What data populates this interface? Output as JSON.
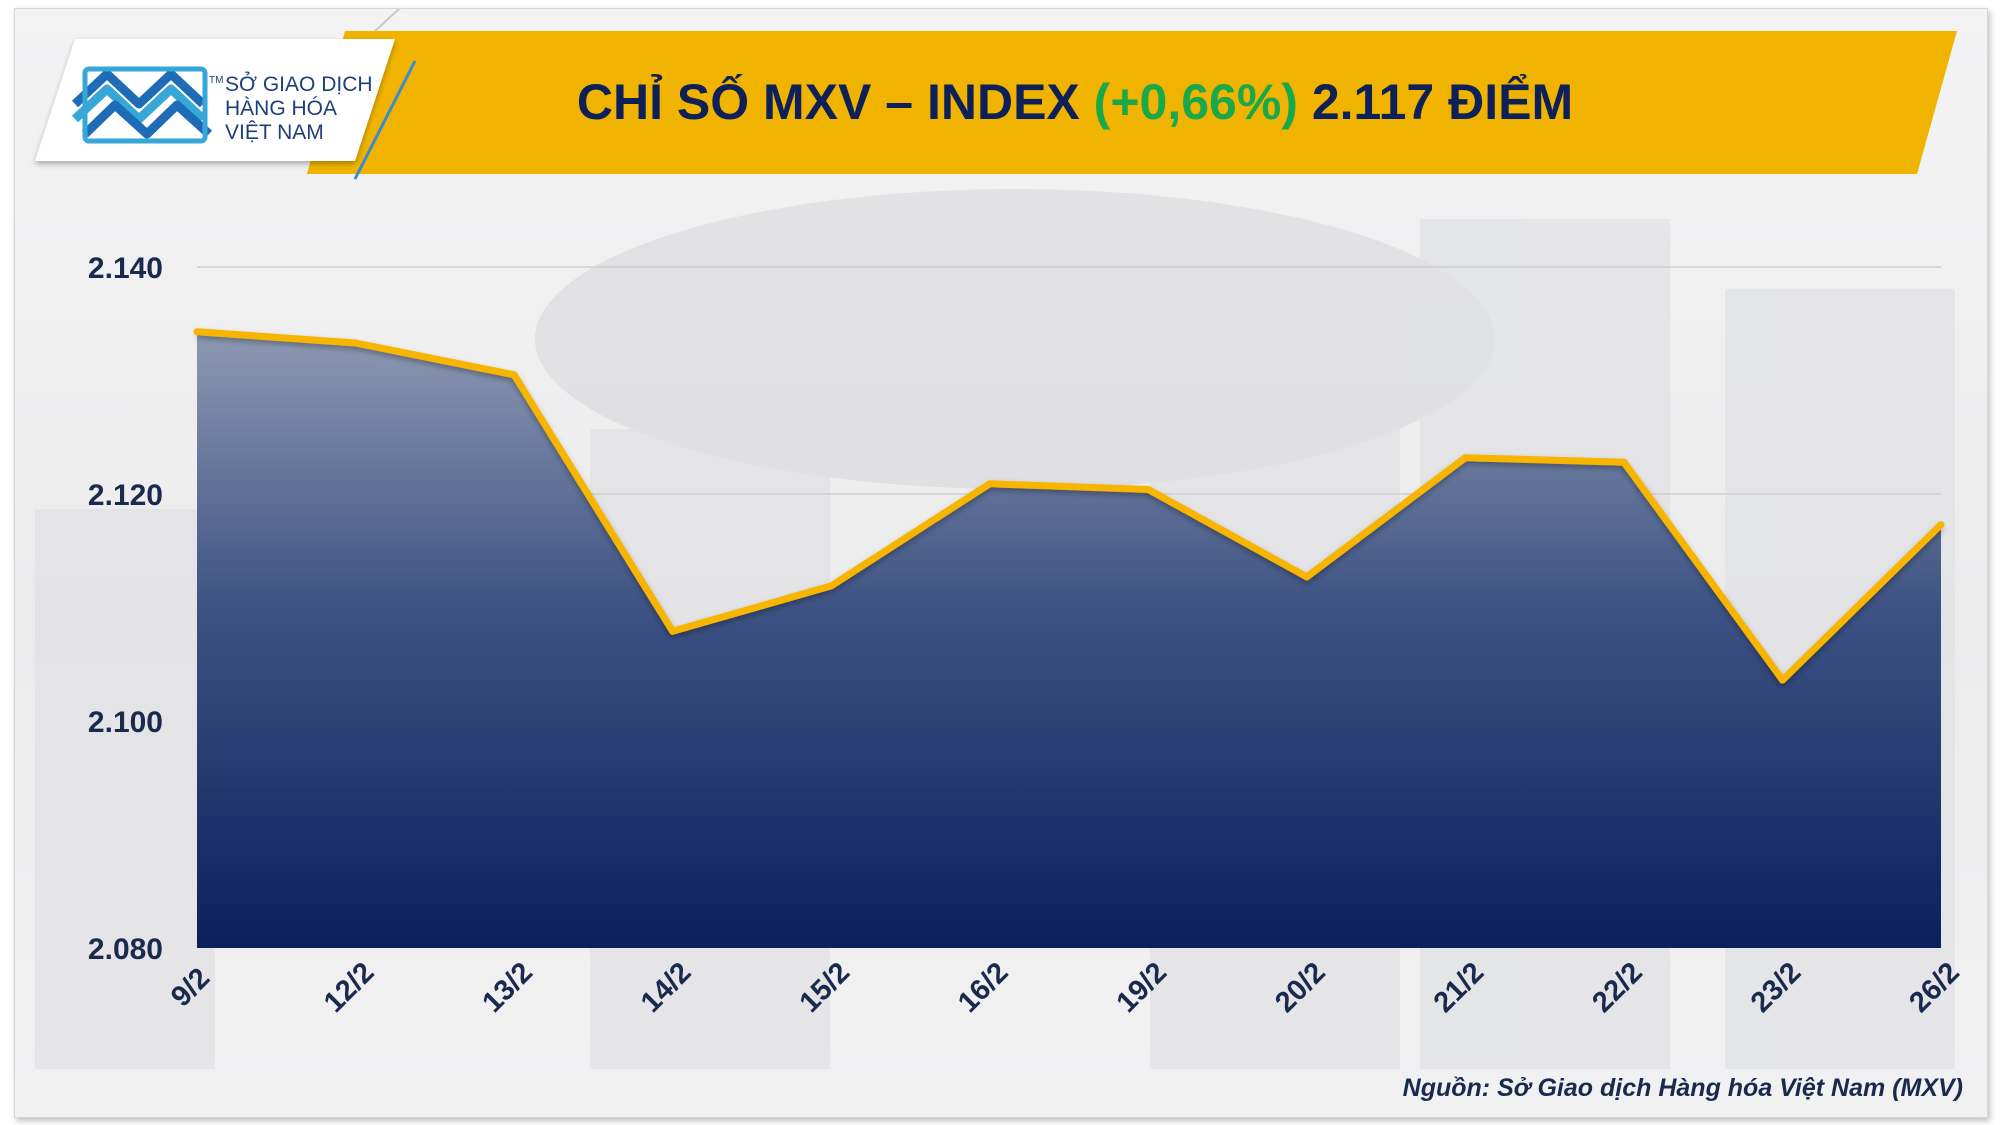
{
  "logo": {
    "line1": "SỞ GIAO DỊCH",
    "line2": "HÀNG HÓA",
    "line3": "VIỆT NAM",
    "tm": "TM"
  },
  "title": {
    "prefix": "CHỈ SỐ MXV – INDEX ",
    "change": "(+0,66%)",
    "suffix": " 2.117 ĐIỂM"
  },
  "source": "Nguồn: Sở Giao dịch Hàng hóa Việt Nam (MXV)",
  "colors": {
    "banner": "#f0b400",
    "title_text": "#0d2158",
    "change_text": "#1aa84a",
    "line": "#f7b500",
    "area_top": "#8e9ab3",
    "area_bottom": "#0b1f5c",
    "axis_text": "#1a2a4f"
  },
  "chart_data": {
    "type": "area",
    "categories": [
      "9/2",
      "12/2",
      "13/2",
      "14/2",
      "15/2",
      "16/2",
      "19/2",
      "20/2",
      "21/2",
      "22/2",
      "23/2",
      "26/2"
    ],
    "values": [
      2134.3,
      2133.3,
      2130.5,
      2107.9,
      2111.9,
      2120.9,
      2120.4,
      2112.7,
      2123.2,
      2122.8,
      2103.6,
      2117.3
    ],
    "ylim": [
      2080,
      2140
    ],
    "yticks": [
      2080,
      2100,
      2120,
      2140
    ],
    "ytick_labels": [
      "2.080",
      "2.100",
      "2.120",
      "2.140"
    ],
    "grid": true,
    "legend": "none"
  }
}
